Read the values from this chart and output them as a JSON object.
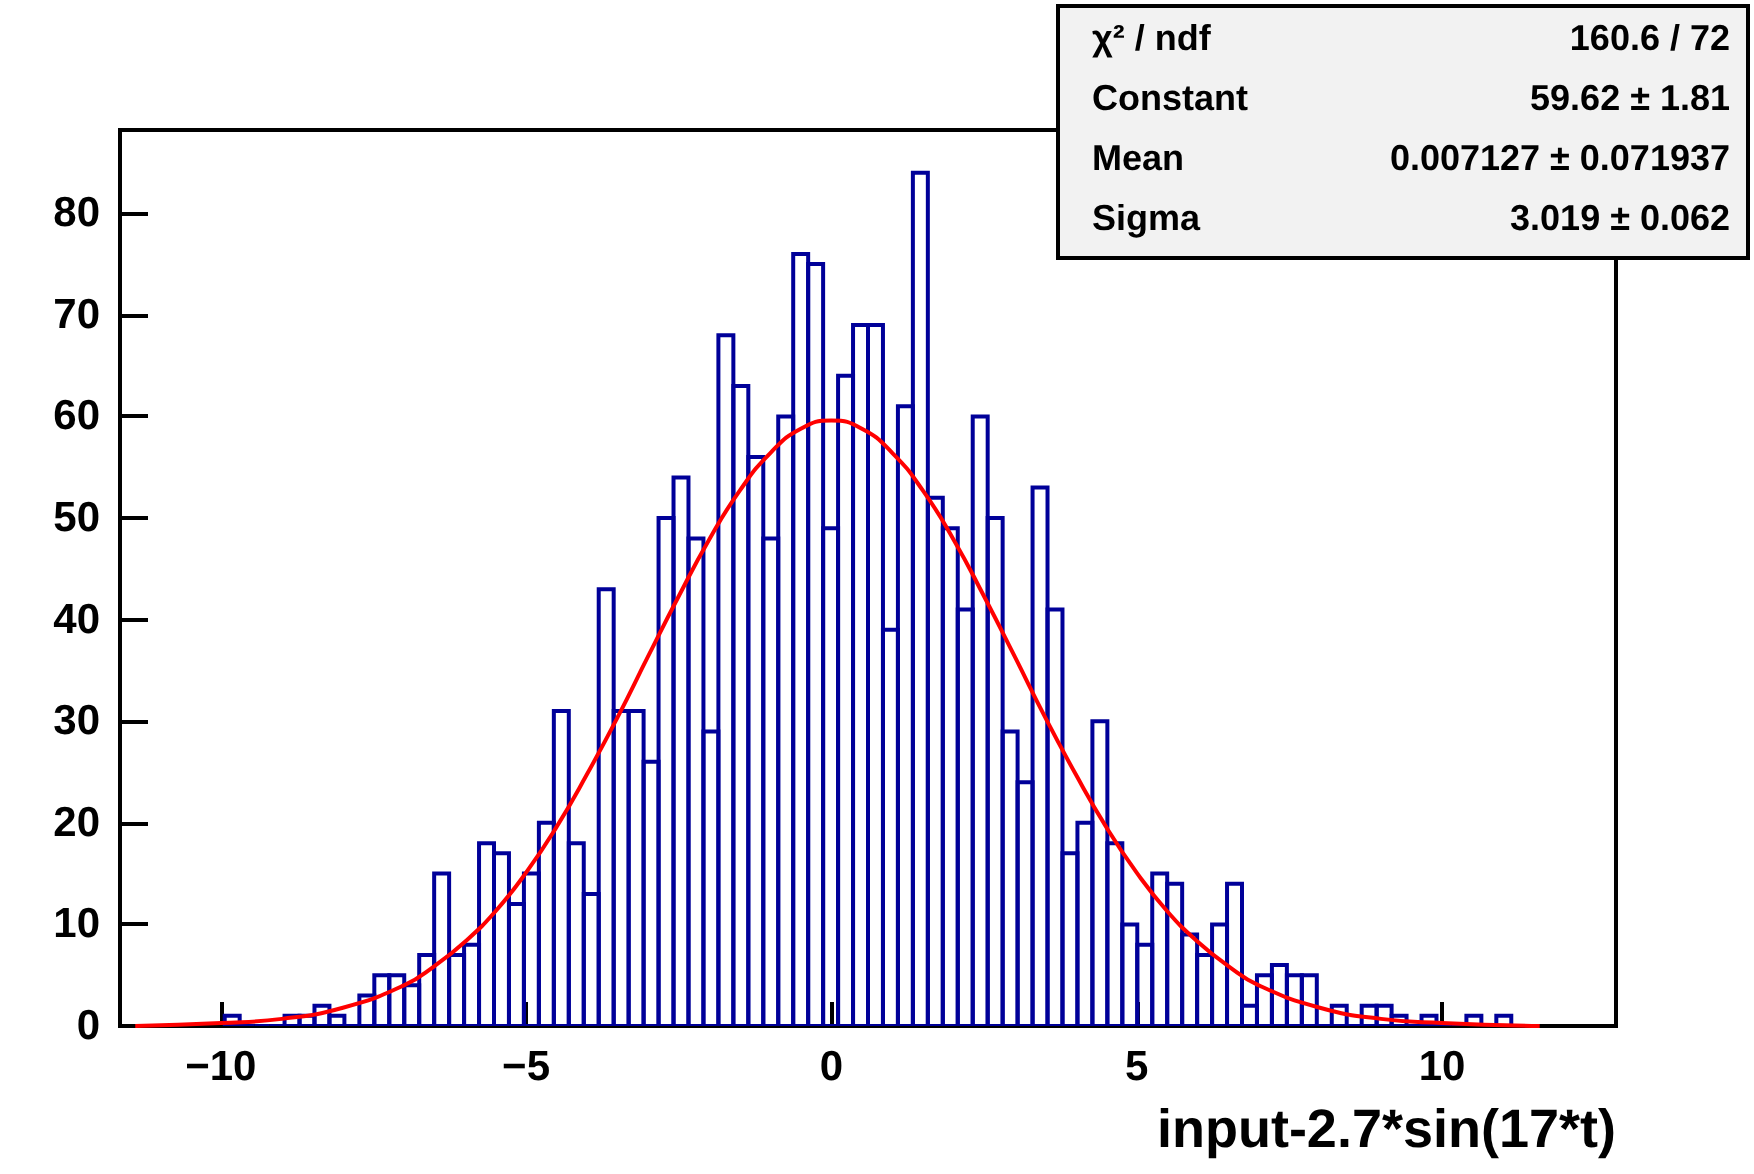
{
  "chart_data": {
    "type": "histogram",
    "xlabel": "input-2.7*sin(17*t)",
    "bins": [
      -9.935,
      -9.69,
      -9.445,
      -9.2,
      -8.955,
      -8.71,
      -8.465,
      -8.22,
      -7.975,
      -7.73,
      -7.485,
      -7.24,
      -6.995,
      -6.75,
      -6.505,
      -6.26,
      -6.015,
      -5.77,
      -5.525,
      -5.28,
      -5.035,
      -4.79,
      -4.545,
      -4.3,
      -4.055,
      -3.81,
      -3.565,
      -3.32,
      -3.075,
      -2.83,
      -2.585,
      -2.34,
      -2.095,
      -1.85,
      -1.605,
      -1.36,
      -1.115,
      -0.87,
      -0.625,
      -0.38,
      -0.135,
      0.11,
      0.355,
      0.6,
      0.845,
      1.09,
      1.335,
      1.58,
      1.825,
      2.07,
      2.315,
      2.56,
      2.805,
      3.05,
      3.295,
      3.54,
      3.785,
      4.03,
      4.275,
      4.52,
      4.765,
      5.01,
      5.255,
      5.5,
      5.745,
      5.99,
      6.235,
      6.48,
      6.725,
      6.97,
      7.215,
      7.46,
      7.705,
      7.95,
      8.195,
      8.44,
      8.685,
      8.93,
      9.175,
      9.42,
      9.665,
      9.91,
      10.155,
      10.4,
      10.645,
      10.89,
      11.135
    ],
    "series": [
      {
        "color": "#000099",
        "values": [
          1,
          0,
          0,
          0,
          1,
          1,
          2,
          1,
          0,
          3,
          5,
          5,
          4,
          7,
          15,
          7,
          8,
          18,
          17,
          12,
          15,
          20,
          31,
          18,
          13,
          43,
          31,
          31,
          26,
          50,
          54,
          48,
          29,
          68,
          63,
          56,
          48,
          60,
          76,
          75,
          49,
          64,
          69,
          69,
          39,
          61,
          84,
          52,
          49,
          41,
          60,
          50,
          29,
          24,
          53,
          41,
          17,
          20,
          30,
          18,
          10,
          8,
          15,
          14,
          9,
          7,
          10,
          14,
          2,
          5,
          6,
          5,
          5,
          0,
          2,
          0,
          2,
          2,
          1,
          0,
          1,
          0,
          0,
          1,
          0,
          1
        ]
      },
      {
        "type": "line",
        "color": "#ff0000",
        "x": [
          -11.4,
          -10,
          -9,
          -8,
          -7,
          -6.5,
          -6,
          -5.5,
          -5,
          -4.5,
          -4,
          -3.5,
          -3,
          -2.5,
          -2,
          -1.5,
          -1,
          -0.5,
          0,
          0.5,
          1,
          1.5,
          2,
          2.5,
          3,
          3.5,
          4,
          4.5,
          5,
          5.5,
          6,
          6.5,
          7,
          8,
          9,
          10,
          11.6
        ],
        "values": [
          0,
          0.3,
          0.7,
          1.8,
          4.0,
          5.9,
          8.3,
          11.3,
          15.1,
          19.6,
          24.8,
          30.4,
          36.4,
          42.3,
          47.9,
          52.7,
          56.4,
          58.8,
          59.6,
          58.8,
          56.4,
          52.7,
          47.9,
          42.3,
          36.4,
          30.4,
          24.8,
          19.6,
          15.1,
          11.3,
          8.3,
          5.9,
          4.0,
          1.8,
          0.7,
          0.3,
          0
        ]
      }
    ],
    "xlim": [
      -11.65,
      12.85
    ],
    "xticks": [
      {
        "value": -10,
        "label": "−10"
      },
      {
        "value": -5,
        "label": "−5"
      },
      0,
      5,
      10
    ],
    "ylim": [
      0,
      88.2
    ],
    "yticks": [
      0,
      10,
      20,
      30,
      40,
      50,
      60,
      70,
      80
    ],
    "annotations": [
      "χ² / ndf",
      "160.6 / 72",
      "Constant",
      "59.62 ± 1.81",
      "Mean",
      "0.007127 ± 0.071937",
      "Sigma",
      "3.019 ± 0.062"
    ]
  }
}
